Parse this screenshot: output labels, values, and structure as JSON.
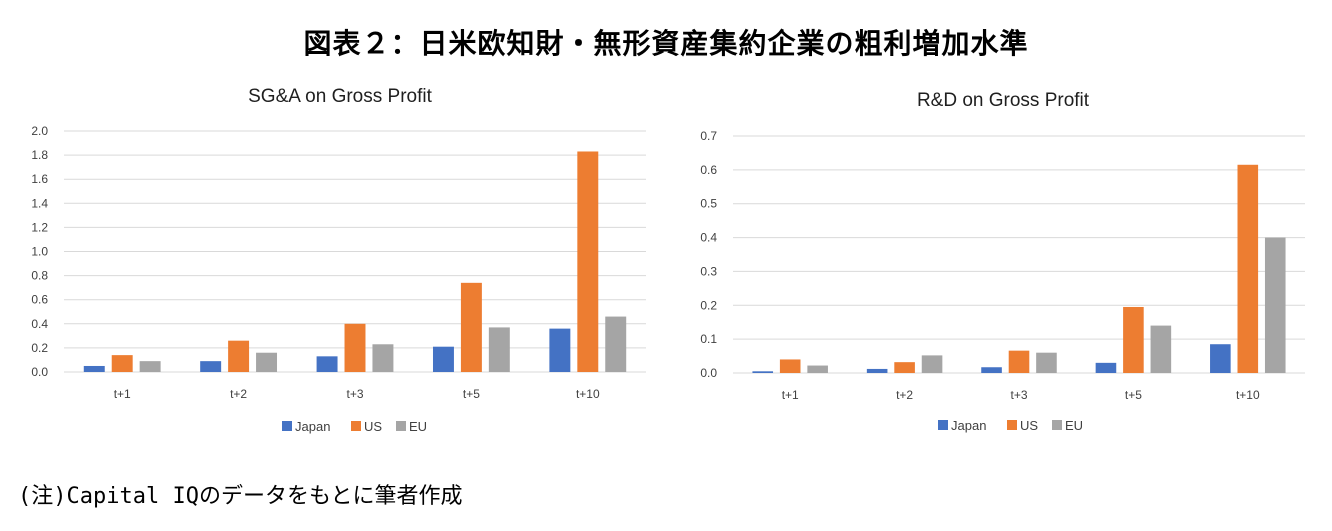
{
  "figure": {
    "title": "図表２：日米欧知財・無形資産集約企業の粗利増加水準",
    "note": "(注)Capital IQのデータをもとに筆者作成"
  },
  "colors": {
    "Japan": "#4472C4",
    "US": "#ED7D31",
    "EU": "#A5A5A5",
    "grid": "#D9D9D9",
    "axis_text": "#404040"
  },
  "chart_data": [
    {
      "type": "bar",
      "title": "SG&A on Gross Profit",
      "categories": [
        "t+1",
        "t+2",
        "t+3",
        "t+5",
        "t+10"
      ],
      "series": [
        {
          "name": "Japan",
          "values": [
            0.05,
            0.09,
            0.13,
            0.21,
            0.36
          ]
        },
        {
          "name": "US",
          "values": [
            0.14,
            0.26,
            0.4,
            0.74,
            1.83
          ]
        },
        {
          "name": "EU",
          "values": [
            0.09,
            0.16,
            0.23,
            0.37,
            0.46
          ]
        }
      ],
      "ylim": [
        0,
        2.0
      ],
      "yticks": [
        "0.0",
        "0.2",
        "0.4",
        "0.6",
        "0.8",
        "1.0",
        "1.2",
        "1.4",
        "1.6",
        "1.8",
        "2.0"
      ],
      "xlabel": "",
      "ylabel": "",
      "grid": true,
      "legend": "bottom"
    },
    {
      "type": "bar",
      "title": "R&D on Gross Profit",
      "categories": [
        "t+1",
        "t+2",
        "t+3",
        "t+5",
        "t+10"
      ],
      "series": [
        {
          "name": "Japan",
          "values": [
            0.005,
            0.012,
            0.017,
            0.03,
            0.085
          ]
        },
        {
          "name": "US",
          "values": [
            0.04,
            0.032,
            0.066,
            0.195,
            0.615
          ]
        },
        {
          "name": "EU",
          "values": [
            0.022,
            0.052,
            0.06,
            0.14,
            0.4
          ]
        }
      ],
      "ylim": [
        0,
        0.7
      ],
      "yticks": [
        "0.0",
        "0.1",
        "0.2",
        "0.3",
        "0.4",
        "0.5",
        "0.6",
        "0.7"
      ],
      "xlabel": "",
      "ylabel": "",
      "grid": true,
      "legend": "bottom"
    }
  ]
}
